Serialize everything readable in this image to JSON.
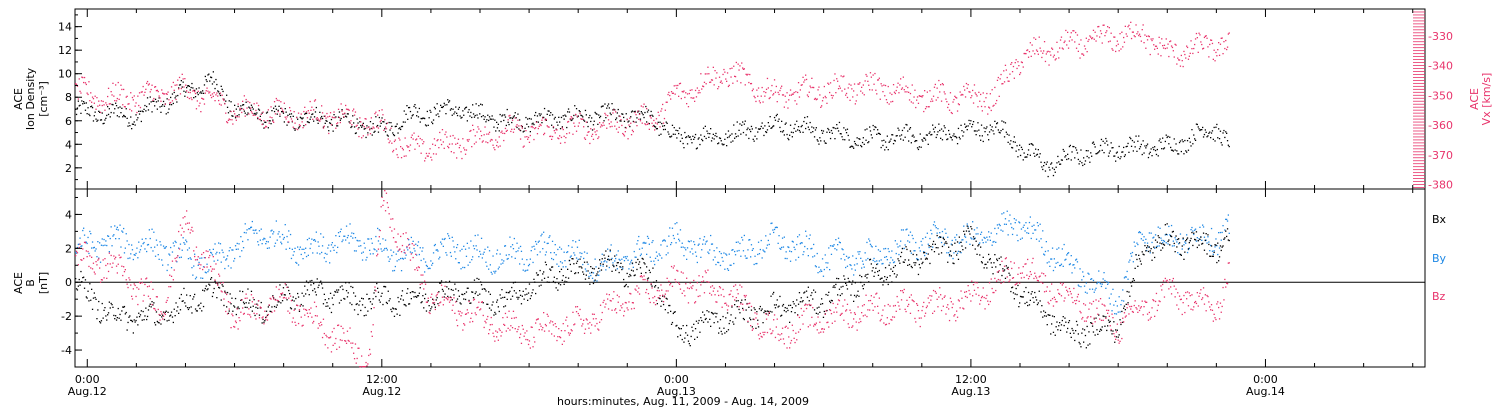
{
  "figure": {
    "xaxis_title": "hours:minutes, Aug. 11, 2009 - Aug. 14, 2009",
    "tick_time_labels": [
      "0:00",
      "12:00",
      "0:00",
      "12:00",
      "0:00"
    ],
    "tick_date_labels": [
      "Aug.12",
      "Aug.12",
      "Aug.13",
      "Aug.13",
      "Aug.14"
    ]
  },
  "colors": {
    "black": "#000000",
    "pink": "#e8336b",
    "blue": "#1e88e5"
  },
  "chart_data": [
    {
      "type": "scatter",
      "title": "",
      "xlabel": "hours:minutes, Aug. 11, 2009 - Aug. 14, 2009",
      "x_range": [
        "Aug.11 23:30",
        "Aug.14 06:30"
      ],
      "ylabel_left": [
        "ACE",
        "Ion Density",
        "[cm⁻³]"
      ],
      "ylim_left": [
        0.2,
        15.5
      ],
      "yticks_left": [
        "2",
        "4",
        "6",
        "8",
        "10",
        "12",
        "14"
      ],
      "ylabel_right": [
        "ACE",
        "Vx [km/s]"
      ],
      "ylim_right": [
        -381.5,
        -321
      ],
      "yticks_right": [
        "-380",
        "-370",
        "-360",
        "-350",
        "-340",
        "-330"
      ],
      "grid": false,
      "series": [
        {
          "axis": "left",
          "color": "#000000",
          "x": [
            "Aug.11 23:30",
            "Aug.12 02:00",
            "Aug.12 04:00",
            "Aug.12 05:00",
            "Aug.12 06:00",
            "Aug.12 08:00",
            "Aug.12 10:00",
            "Aug.12 12:00",
            "Aug.12 13:00",
            "Aug.12 15:00",
            "Aug.12 17:00",
            "Aug.12 19:00",
            "Aug.12 21:00",
            "Aug.12 23:00",
            "Aug.13 00:00",
            "Aug.13 02:00",
            "Aug.13 04:00",
            "Aug.13 06:00",
            "Aug.13 08:00",
            "Aug.13 10:00",
            "Aug.13 12:00",
            "Aug.13 13:00",
            "Aug.13 15:00",
            "Aug.13 17:00",
            "Aug.13 19:00",
            "Aug.13 20:00",
            "Aug.13 22:00",
            "Aug.13 22:30"
          ],
          "y": [
            6.8,
            6.5,
            8.5,
            9.5,
            7.0,
            6.2,
            6.2,
            5.2,
            6.5,
            7.0,
            6.0,
            6.2,
            6.5,
            6.3,
            4.5,
            4.8,
            5.8,
            5.0,
            4.5,
            4.7,
            5.2,
            5.5,
            2.2,
            3.6,
            3.8,
            3.8,
            5.5,
            4.0
          ]
        },
        {
          "axis": "right",
          "color": "#e8336b",
          "x": [
            "Aug.11 23:30",
            "Aug.12 01:00",
            "Aug.12 02:30",
            "Aug.12 04:00",
            "Aug.12 06:00",
            "Aug.12 08:00",
            "Aug.12 10:00",
            "Aug.12 12:00",
            "Aug.12 13:00",
            "Aug.12 15:00",
            "Aug.12 17:00",
            "Aug.12 19:00",
            "Aug.12 21:00",
            "Aug.12 23:00",
            "Aug.13 00:00",
            "Aug.13 02:00",
            "Aug.13 04:00",
            "Aug.13 06:00",
            "Aug.13 08:00",
            "Aug.13 10:00",
            "Aug.13 12:00",
            "Aug.13 13:00",
            "Aug.13 14:00",
            "Aug.13 16:00",
            "Aug.13 18:00",
            "Aug.13 19:00",
            "Aug.13 20:00",
            "Aug.13 22:00",
            "Aug.13 22:30"
          ],
          "y": [
            -349,
            -351,
            -350,
            -348,
            -355,
            -356,
            -357,
            -360,
            -368,
            -366,
            -362,
            -362,
            -360,
            -358,
            -350,
            -342,
            -350,
            -348,
            -347,
            -350,
            -351,
            -350,
            -337,
            -333,
            -330,
            -329,
            -336,
            -333,
            -332
          ]
        }
      ]
    },
    {
      "type": "scatter",
      "title": "",
      "xlabel": "hours:minutes, Aug. 11, 2009 - Aug. 14, 2009",
      "x_range": [
        "Aug.11 23:30",
        "Aug.14 06:30"
      ],
      "ylabel_left": [
        "ACE",
        "B",
        "[nT]"
      ],
      "ylim_left": [
        -5,
        5.5
      ],
      "yticks_left": [
        "-4",
        "-2",
        "0",
        "2",
        "4"
      ],
      "reference_line": 0,
      "grid": false,
      "legend_position": "right",
      "series": [
        {
          "name": "Bx",
          "color": "#000000",
          "x": [
            "Aug.11 23:30",
            "Aug.12 01:00",
            "Aug.12 03:00",
            "Aug.12 05:00",
            "Aug.12 07:00",
            "Aug.12 09:00",
            "Aug.12 11:00",
            "Aug.12 13:00",
            "Aug.12 15:00",
            "Aug.12 17:00",
            "Aug.12 19:00",
            "Aug.12 21:00",
            "Aug.12 23:00",
            "Aug.13 00:00",
            "Aug.13 02:00",
            "Aug.13 04:00",
            "Aug.13 06:00",
            "Aug.13 08:00",
            "Aug.13 10:00",
            "Aug.13 12:00",
            "Aug.13 14:00",
            "Aug.13 16:00",
            "Aug.13 18:00",
            "Aug.13 19:00",
            "Aug.13 20:00",
            "Aug.13 22:00",
            "Aug.13 22:30"
          ],
          "y": [
            0.0,
            -2.0,
            -2.0,
            -0.5,
            -1.5,
            -0.5,
            -1.0,
            -1.0,
            -0.5,
            -1.0,
            0.5,
            1.0,
            0.5,
            -3.0,
            -2.0,
            -1.5,
            -1.0,
            0.5,
            1.5,
            2.5,
            -0.5,
            -3.0,
            -2.5,
            2.0,
            2.5,
            2.2,
            2.5
          ]
        },
        {
          "name": "By",
          "color": "#1e88e5",
          "x": [
            "Aug.11 23:30",
            "Aug.12 01:00",
            "Aug.12 03:00",
            "Aug.12 05:00",
            "Aug.12 07:00",
            "Aug.12 09:00",
            "Aug.12 11:00",
            "Aug.12 13:00",
            "Aug.12 15:00",
            "Aug.12 17:00",
            "Aug.12 19:00",
            "Aug.12 21:00",
            "Aug.12 23:00",
            "Aug.13 00:00",
            "Aug.13 02:00",
            "Aug.13 04:00",
            "Aug.13 06:00",
            "Aug.13 08:00",
            "Aug.13 10:00",
            "Aug.13 12:00",
            "Aug.13 14:00",
            "Aug.13 16:00",
            "Aug.13 18:00",
            "Aug.13 19:00",
            "Aug.13 20:00",
            "Aug.13 22:00",
            "Aug.13 22:30"
          ],
          "y": [
            2.0,
            2.5,
            2.0,
            1.0,
            3.0,
            2.0,
            2.5,
            1.5,
            2.0,
            1.5,
            2.0,
            1.0,
            2.0,
            2.5,
            1.5,
            2.5,
            1.5,
            1.5,
            2.5,
            2.5,
            3.5,
            1.0,
            -1.0,
            3.0,
            2.5,
            2.8,
            3.0
          ]
        },
        {
          "name": "Bz",
          "color": "#e8336b",
          "x": [
            "Aug.11 23:30",
            "Aug.12 01:00",
            "Aug.12 03:00",
            "Aug.12 04:00",
            "Aug.12 06:00",
            "Aug.12 08:00",
            "Aug.12 10:00",
            "Aug.12 11:30",
            "Aug.12 12:00",
            "Aug.12 14:00",
            "Aug.12 16:00",
            "Aug.12 18:00",
            "Aug.12 20:00",
            "Aug.12 22:00",
            "Aug.13 00:00",
            "Aug.13 02:00",
            "Aug.13 04:00",
            "Aug.13 06:00",
            "Aug.13 08:00",
            "Aug.13 10:00",
            "Aug.13 12:00",
            "Aug.13 14:00",
            "Aug.13 16:00",
            "Aug.13 18:00",
            "Aug.13 20:00",
            "Aug.13 22:00",
            "Aug.13 22:30"
          ],
          "y": [
            1.5,
            1.0,
            -1.5,
            3.5,
            -2.0,
            -1.0,
            -3.0,
            -4.5,
            5.0,
            -1.0,
            -2.0,
            -3.0,
            -2.5,
            -1.0,
            0.0,
            -0.5,
            -3.0,
            -2.0,
            -1.5,
            -1.5,
            -1.0,
            1.0,
            -1.0,
            -2.5,
            -0.5,
            -1.5,
            0.5
          ]
        }
      ]
    }
  ]
}
